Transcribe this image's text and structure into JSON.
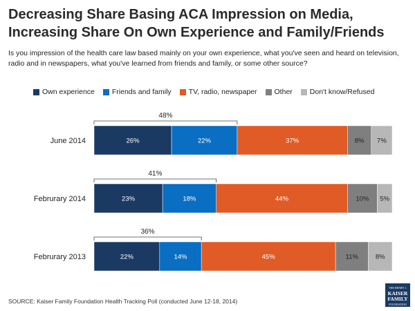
{
  "title": "Decreasing Share Basing ACA Impression on Media, Increasing Share On Own Experience and Family/Friends",
  "subtitle": "Is you impression of the health care law based mainly on your own experience, what you've seen and heard on television, radio and in newspapers, what you've learned from friends and family, or some other source?",
  "source": "SOURCE: Kaiser Family Foundation Health Tracking Poll (conducted June 12-18, 2014)",
  "logo": {
    "line1": "THE HENRY J.",
    "line2a": "KAISER",
    "line2b": "FAMILY",
    "line3": "FOUNDATION"
  },
  "colors": {
    "own_experience": "#1b3a63",
    "friends_family": "#0a6ec2",
    "media": "#e05b26",
    "other": "#7f7f7f",
    "dont_know": "#b7b7b7"
  },
  "chart_data": {
    "type": "bar",
    "orientation": "horizontal",
    "stacked": true,
    "categories": [
      "June 2014",
      "Februrary 2014",
      "Februrary 2013"
    ],
    "series": [
      {
        "name": "Own experience",
        "values": [
          26,
          23,
          22
        ]
      },
      {
        "name": "Friends and family",
        "values": [
          22,
          18,
          14
        ]
      },
      {
        "name": "TV, radio, newspaper",
        "values": [
          37,
          44,
          45
        ]
      },
      {
        "name": "Other",
        "values": [
          8,
          10,
          11
        ]
      },
      {
        "name": "Don't know/Refused",
        "values": [
          7,
          5,
          8
        ]
      }
    ],
    "bracket_totals": [
      "48%",
      "41%",
      "36%"
    ],
    "value_suffix": "%",
    "xlim": [
      0,
      100
    ],
    "legend_position": "top-left",
    "grid": false
  }
}
